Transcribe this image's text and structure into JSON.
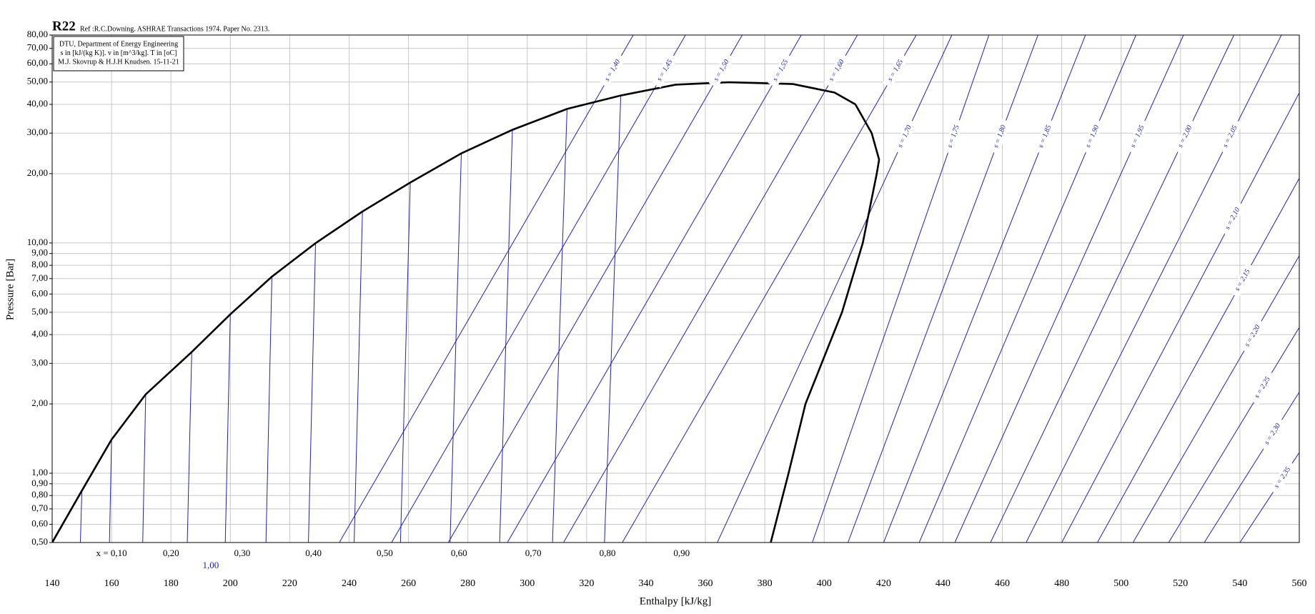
{
  "chart_data": {
    "type": "line",
    "title": "R22",
    "subtitle": "Ref :R.C.Downing. ASHRAE Transactions 1974. Paper No. 2313.",
    "info": [
      "DTU, Department of Energy Engineering",
      "s in [kJ/(kg K)]. v in [m^3/kg]. T in [oC]",
      "M.J. Skovrup & H.J.H Knudsen. 15-11-21"
    ],
    "xlabel": "Enthalpy [kJ/kg]",
    "ylabel": "Pressure [Bar]",
    "xlim": [
      140,
      560
    ],
    "ylim": [
      0.5,
      80
    ],
    "log_y": true,
    "grid": true,
    "xticks": [
      140,
      160,
      180,
      200,
      220,
      240,
      260,
      280,
      300,
      320,
      340,
      360,
      380,
      400,
      420,
      440,
      460,
      480,
      500,
      520,
      540,
      560
    ],
    "yticks": [
      {
        "value": 0.5,
        "label": "0,50"
      },
      {
        "value": 0.6,
        "label": "0,60"
      },
      {
        "value": 0.7,
        "label": "0,70"
      },
      {
        "value": 0.8,
        "label": "0,80"
      },
      {
        "value": 0.9,
        "label": "0,90"
      },
      {
        "value": 1,
        "label": "1,00"
      },
      {
        "value": 2,
        "label": "2,00"
      },
      {
        "value": 3,
        "label": "3,00"
      },
      {
        "value": 4,
        "label": "4,00"
      },
      {
        "value": 5,
        "label": "5,00"
      },
      {
        "value": 6,
        "label": "6,00"
      },
      {
        "value": 7,
        "label": "7,00"
      },
      {
        "value": 8,
        "label": "8,00"
      },
      {
        "value": 9,
        "label": "9,00"
      },
      {
        "value": 10,
        "label": "10,00"
      },
      {
        "value": 20,
        "label": "20,00"
      },
      {
        "value": 30,
        "label": "30,00"
      },
      {
        "value": 40,
        "label": "40,00"
      },
      {
        "value": 50,
        "label": "50,00"
      },
      {
        "value": 60,
        "label": "60,00"
      },
      {
        "value": 70,
        "label": "70,00"
      },
      {
        "value": 80,
        "label": "80,00"
      }
    ],
    "saturation": {
      "color": "#000000",
      "x": [
        140,
        150,
        160,
        171.5,
        187,
        200,
        214,
        228.7,
        244.5,
        260.6,
        277.8,
        295,
        313.4,
        331.5,
        350,
        368,
        389.5,
        403.5,
        410.5,
        416,
        418.5,
        417.7,
        413,
        406,
        393.7,
        388,
        382
      ],
      "values": [
        0.5,
        0.84,
        1.4,
        2.2,
        3.36,
        4.9,
        7.14,
        9.98,
        13.7,
        18.3,
        24.5,
        31,
        38.2,
        43.7,
        48.7,
        49.9,
        49,
        45,
        40,
        30,
        23,
        20,
        10,
        5,
        2,
        1,
        0.5
      ]
    },
    "liquid_lines": {
      "color": "#2020c0",
      "lines": [
        {
          "x": [
            150,
            149.5
          ],
          "values": [
            0.84,
            0.5
          ]
        },
        {
          "x": [
            160,
            159.3
          ],
          "values": [
            1.4,
            0.5
          ]
        },
        {
          "x": [
            171.5,
            170.5
          ],
          "values": [
            2.2,
            0.5
          ]
        },
        {
          "x": [
            187,
            185.5
          ],
          "values": [
            3.36,
            0.5
          ]
        },
        {
          "x": [
            200,
            198.3
          ],
          "values": [
            4.9,
            0.5
          ]
        },
        {
          "x": [
            214,
            212
          ],
          "values": [
            7.14,
            0.5
          ]
        },
        {
          "x": [
            228.7,
            226.3
          ],
          "values": [
            9.98,
            0.5
          ]
        },
        {
          "x": [
            244.5,
            241.7
          ],
          "values": [
            13.7,
            0.5
          ]
        },
        {
          "x": [
            260.6,
            257.3
          ],
          "values": [
            18.3,
            0.5
          ]
        },
        {
          "x": [
            277.8,
            274
          ],
          "values": [
            24.5,
            0.5
          ]
        },
        {
          "x": [
            295,
            290.7
          ],
          "values": [
            31,
            0.5
          ]
        },
        {
          "x": [
            313.4,
            308.5
          ],
          "values": [
            38.2,
            0.5
          ]
        },
        {
          "x": [
            331.5,
            326
          ],
          "values": [
            43.7,
            0.5
          ]
        }
      ]
    },
    "series": [
      {
        "name": "s = 1,40",
        "color": "#2020c0",
        "x": [
          236.7,
          335.7
        ],
        "values": [
          0.5,
          80
        ]
      },
      {
        "name": "s = 1,45",
        "color": "#2020c0",
        "x": [
          254.3,
          353.3
        ],
        "values": [
          0.5,
          80
        ]
      },
      {
        "name": "s = 1,50",
        "color": "#2020c0",
        "x": [
          273.4,
          372.4
        ],
        "values": [
          0.5,
          80
        ]
      },
      {
        "name": "s = 1,55",
        "color": "#2020c0",
        "x": [
          293.3,
          392.3
        ],
        "values": [
          0.5,
          80
        ]
      },
      {
        "name": "s = 1,60",
        "color": "#2020c0",
        "x": [
          312.2,
          411.2
        ],
        "values": [
          0.5,
          80
        ]
      },
      {
        "name": "s = 1,65",
        "color": "#2020c0",
        "x": [
          332,
          431
        ],
        "values": [
          0.5,
          80
        ]
      },
      {
        "name": "s = 1,70",
        "color": "#2020c0",
        "x": [
          364,
          443
        ],
        "values": [
          0.5,
          80
        ]
      },
      {
        "name": "s = 1,75",
        "color": "#2020c0",
        "x": [
          396,
          455.5
        ],
        "values": [
          0.5,
          80
        ]
      },
      {
        "name": "s = 1,80",
        "color": "#2020c0",
        "x": [
          408,
          472
        ],
        "values": [
          0.5,
          80
        ]
      },
      {
        "name": "s = 1,85",
        "color": "#2020c0",
        "x": [
          420,
          488
        ],
        "values": [
          0.5,
          80
        ]
      },
      {
        "name": "s = 1,90",
        "color": "#2020c0",
        "x": [
          432,
          505
        ],
        "values": [
          0.5,
          80
        ]
      },
      {
        "name": "s = 1,95",
        "color": "#2020c0",
        "x": [
          444,
          521
        ],
        "values": [
          0.5,
          80
        ]
      },
      {
        "name": "s = 2,00",
        "color": "#2020c0",
        "x": [
          456,
          538
        ],
        "values": [
          0.5,
          80
        ]
      },
      {
        "name": "s = 2,05",
        "color": "#2020c0",
        "x": [
          468,
          554
        ],
        "values": [
          0.5,
          80
        ]
      },
      {
        "name": "s = 2,10",
        "color": "#2020c0",
        "x": [
          480,
          560
        ],
        "values": [
          0.5,
          44.9
        ]
      },
      {
        "name": "s = 2,15",
        "color": "#2020c0",
        "x": [
          492,
          560
        ],
        "values": [
          0.5,
          19.1
        ]
      },
      {
        "name": "s = 2,20",
        "color": "#2020c0",
        "x": [
          504,
          560
        ],
        "values": [
          0.5,
          8.8
        ]
      },
      {
        "name": "s = 2,25",
        "color": "#2020c0",
        "x": [
          516,
          560
        ],
        "values": [
          0.5,
          4.3
        ]
      },
      {
        "name": "s = 2,30",
        "color": "#2020c0",
        "x": [
          528,
          560
        ],
        "values": [
          0.5,
          2.25
        ]
      },
      {
        "name": "s = 2,35",
        "color": "#2020c0",
        "x": [
          540,
          560
        ],
        "values": [
          0.5,
          1.23
        ]
      }
    ],
    "quality_labels": [
      {
        "label": "x = 0,10",
        "x": 160
      },
      {
        "label": "0,20",
        "x": 180
      },
      {
        "label": "0,30",
        "x": 204
      },
      {
        "label": "0,40",
        "x": 228
      },
      {
        "label": "0,50",
        "x": 252
      },
      {
        "label": "0,60",
        "x": 277
      },
      {
        "label": "0,70",
        "x": 302
      },
      {
        "label": "0,80",
        "x": 327
      },
      {
        "label": "0,90",
        "x": 352
      }
    ],
    "quality_one": {
      "label": "1,00",
      "x": 193.4,
      "color": "#2020c0"
    }
  }
}
